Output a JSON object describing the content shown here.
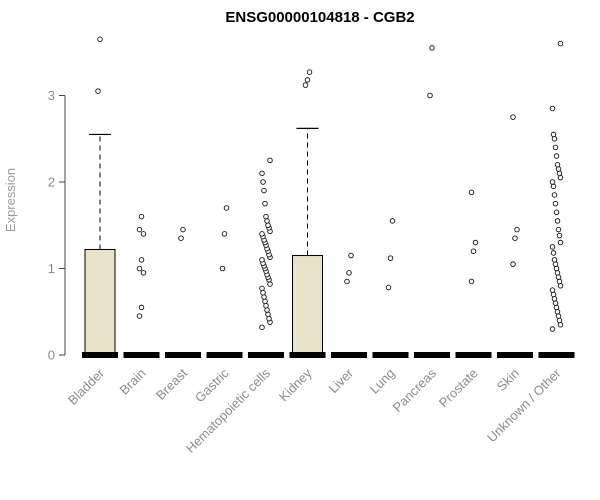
{
  "chart_data": {
    "type": "boxplot",
    "title": "ENSG00000104818 - CGB2",
    "ylabel": "Expression",
    "xlabel": "",
    "ylim": [
      0,
      3.75
    ],
    "yticks": [
      0,
      1,
      2,
      3
    ],
    "grid": "off",
    "legend": "none",
    "box_fill": "#e9e2c8",
    "box_stroke": "#000000",
    "axis_text_color": "#8c8c8c",
    "categories": [
      "Bladder",
      "Brain",
      "Breast",
      "Gastric",
      "Hematopoietic cells",
      "Kidney",
      "Liver",
      "Lung",
      "Pancreas",
      "Prostate",
      "Skin",
      "Unknown / Other"
    ],
    "boxes": [
      {
        "category": "Bladder",
        "q1": 0,
        "median": 0,
        "q3": 1.22,
        "whisker_low": 0,
        "whisker_high": 2.55,
        "outliers": [
          3.05,
          3.65
        ]
      },
      {
        "category": "Brain",
        "q1": 0,
        "median": 0,
        "q3": 0,
        "whisker_low": 0,
        "whisker_high": 0,
        "outliers": [
          0.45,
          0.55,
          0.95,
          1.0,
          1.1,
          1.4,
          1.45,
          1.6
        ]
      },
      {
        "category": "Breast",
        "q1": 0,
        "median": 0,
        "q3": 0,
        "whisker_low": 0,
        "whisker_high": 0,
        "outliers": [
          1.35,
          1.45
        ]
      },
      {
        "category": "Gastric",
        "q1": 0,
        "median": 0,
        "q3": 0,
        "whisker_low": 0,
        "whisker_high": 0,
        "outliers": [
          1.0,
          1.4,
          1.7
        ]
      },
      {
        "category": "Hematopoietic cells",
        "q1": 0,
        "median": 0,
        "q3": 0,
        "whisker_low": 0,
        "whisker_high": 0,
        "outliers": [
          0.32,
          0.38,
          0.42,
          0.47,
          0.52,
          0.57,
          0.62,
          0.67,
          0.72,
          0.77,
          0.82,
          0.87,
          0.9,
          0.93,
          0.97,
          1.0,
          1.03,
          1.06,
          1.1,
          1.13,
          1.16,
          1.2,
          1.23,
          1.27,
          1.3,
          1.33,
          1.37,
          1.4,
          1.43,
          1.47,
          1.5,
          1.55,
          1.6,
          1.75,
          1.9,
          2.0,
          2.1,
          2.25
        ]
      },
      {
        "category": "Kidney",
        "q1": 0,
        "median": 0,
        "q3": 1.15,
        "whisker_low": 0,
        "whisker_high": 2.62,
        "outliers": [
          3.12,
          3.18,
          3.27
        ]
      },
      {
        "category": "Liver",
        "q1": 0,
        "median": 0,
        "q3": 0,
        "whisker_low": 0,
        "whisker_high": 0,
        "outliers": [
          0.85,
          0.95,
          1.15
        ]
      },
      {
        "category": "Lung",
        "q1": 0,
        "median": 0,
        "q3": 0,
        "whisker_low": 0,
        "whisker_high": 0,
        "outliers": [
          0.78,
          1.12,
          1.55
        ]
      },
      {
        "category": "Pancreas",
        "q1": 0,
        "median": 0,
        "q3": 0,
        "whisker_low": 0,
        "whisker_high": 0,
        "outliers": [
          3.0,
          3.55
        ]
      },
      {
        "category": "Prostate",
        "q1": 0,
        "median": 0,
        "q3": 0,
        "whisker_low": 0,
        "whisker_high": 0,
        "outliers": [
          0.85,
          1.2,
          1.3,
          1.88
        ]
      },
      {
        "category": "Skin",
        "q1": 0,
        "median": 0,
        "q3": 0,
        "whisker_low": 0,
        "whisker_high": 0,
        "outliers": [
          1.05,
          1.35,
          1.45,
          2.75
        ]
      },
      {
        "category": "Unknown / Other",
        "q1": 0,
        "median": 0,
        "q3": 0,
        "whisker_low": 0,
        "whisker_high": 0,
        "outliers": [
          0.3,
          0.35,
          0.4,
          0.45,
          0.5,
          0.55,
          0.6,
          0.65,
          0.7,
          0.75,
          0.8,
          0.85,
          0.9,
          0.95,
          1.0,
          1.05,
          1.1,
          1.18,
          1.25,
          1.3,
          1.38,
          1.45,
          1.55,
          1.65,
          1.75,
          1.85,
          1.95,
          2.0,
          2.05,
          2.1,
          2.15,
          2.2,
          2.3,
          2.4,
          2.5,
          2.55,
          2.85,
          3.6
        ]
      }
    ]
  }
}
